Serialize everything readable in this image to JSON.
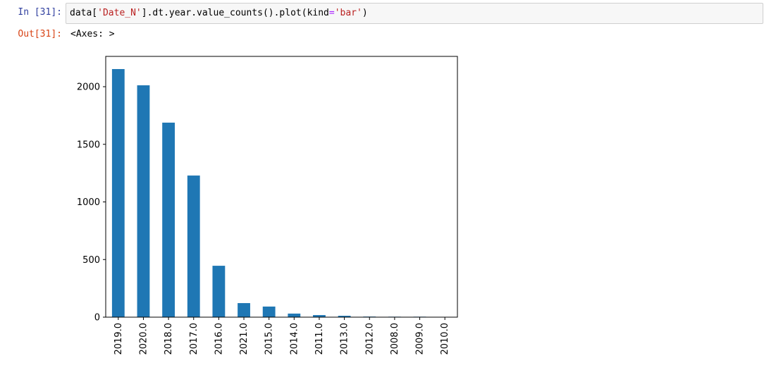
{
  "cell": {
    "in_prompt": "In [31]:",
    "out_prompt": "Out[31]:",
    "code_parts": [
      "data[",
      "'Date_N'",
      "].dt.year.value_counts().plot(kind",
      "=",
      "'bar'",
      ")"
    ],
    "output_text": "<Axes: >"
  },
  "chart_data": {
    "type": "bar",
    "categories": [
      "2019.0",
      "2020.0",
      "2018.0",
      "2017.0",
      "2016.0",
      "2021.0",
      "2015.0",
      "2014.0",
      "2011.0",
      "2013.0",
      "2012.0",
      "2008.0",
      "2009.0",
      "2010.0"
    ],
    "values": [
      2153,
      2012,
      1688,
      1229,
      446,
      122,
      92,
      31,
      18,
      12,
      5,
      4,
      4,
      3
    ],
    "title": "",
    "xlabel": "",
    "ylabel": "",
    "ylim": [
      0,
      2263
    ],
    "yticks": [
      0,
      500,
      1000,
      1500,
      2000
    ],
    "bar_color": "#1f77b4",
    "grid": false
  }
}
